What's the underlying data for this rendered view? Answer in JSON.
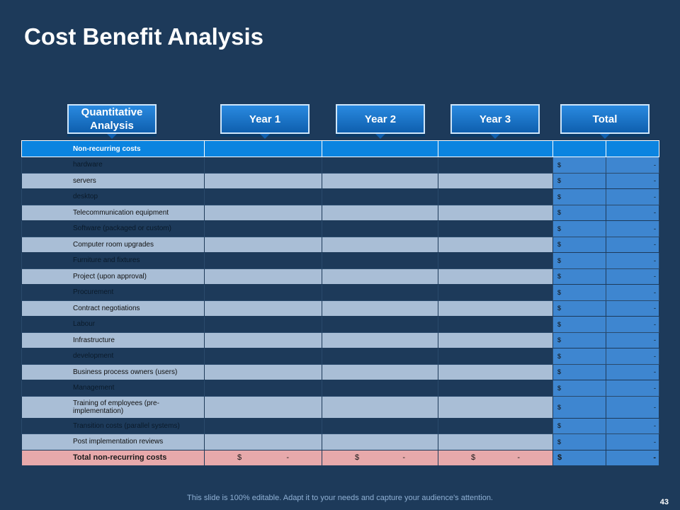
{
  "title": "Cost Benefit Analysis",
  "headers": {
    "quantitative": "Quantitative Analysis",
    "year1": "Year 1",
    "year2": "Year 2",
    "year3": "Year 3",
    "total": "Total"
  },
  "section_label": "Non-recurring costs",
  "currency_symbol": "$",
  "empty_value": "-",
  "rows": [
    "hardware",
    "servers",
    "desktop",
    "Telecommunication equipment",
    "Software (packaged or custom)",
    "Computer room upgrades",
    "Furniture and fixtures",
    "Project (upon approval)",
    "Procurement",
    "Contract negotiations",
    "Labour",
    "Infrastructure",
    "development",
    "Business process owners (users)",
    "Management",
    "Training of employees (pre-implementation)",
    "Transition costs (parallel systems)",
    "Post implementation reviews"
  ],
  "total_label": "Total non-recurring costs",
  "footer": "This slide is 100% editable. Adapt it to your needs and capture your audience's attention.",
  "page_number": "43",
  "colors": {
    "background": "#1d3a5a",
    "header_blue": "#0b84e0",
    "light_row": "#a9bed6",
    "total_column": "#3e86d0",
    "total_row": "#e7a9ab"
  }
}
